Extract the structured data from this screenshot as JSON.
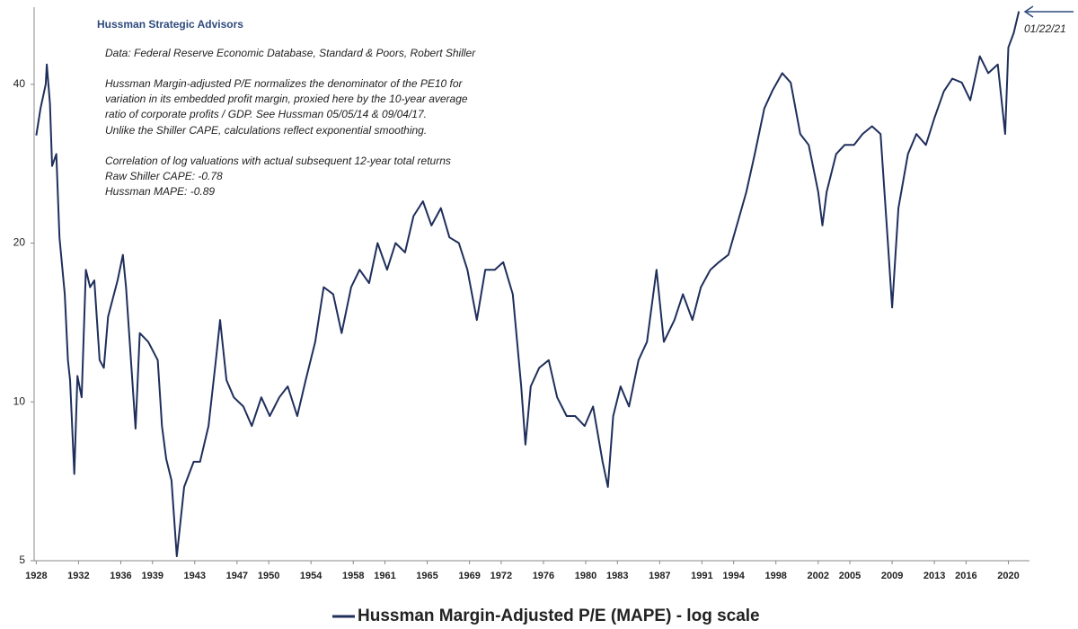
{
  "chart_data": {
    "type": "line",
    "title": "Hussman Strategic Advisors",
    "annotations": [
      "Data: Federal Reserve Economic Database, Standard & Poors, Robert Shiller",
      "Hussman Margin-adjusted P/E normalizes the denominator of the PE10 for",
      "variation in its embedded profit margin, proxied here by the 10-year average",
      "ratio of corporate profits / GDP. See Hussman 05/05/14  & 09/04/17.",
      "Unlike the Shiller CAPE, calculations reflect exponential smoothing.",
      "Correlation of log valuations with actual subsequent 12-year total returns",
      "Raw Shiller CAPE: -0.78",
      "Hussman MAPE: -0.89"
    ],
    "end_label": "01/22/21",
    "log_scale": true,
    "legend": "bottom",
    "xlim": [
      1927.8,
      2022
    ],
    "ylim": [
      5,
      56
    ],
    "yticks": [
      5,
      10,
      20,
      40
    ],
    "xticks": [
      1928,
      1932,
      1936,
      1939,
      1943,
      1947,
      1950,
      1954,
      1958,
      1961,
      1965,
      1969,
      1972,
      1976,
      1980,
      1983,
      1987,
      1991,
      1994,
      1998,
      2002,
      2005,
      2009,
      2013,
      2016,
      2020
    ],
    "x": [
      1928.0,
      1928.4,
      1928.9,
      1929.0,
      1929.3,
      1929.5,
      1929.9,
      1930.2,
      1930.7,
      1931.0,
      1931.2,
      1931.6,
      1931.9,
      1932.3,
      1932.7,
      1933.1,
      1933.5,
      1934.0,
      1934.4,
      1934.8,
      1935.7,
      1936.2,
      1936.5,
      1937.4,
      1937.8,
      1938.6,
      1939.5,
      1939.9,
      1940.3,
      1940.8,
      1941.3,
      1941.6,
      1942.0,
      1942.9,
      1943.5,
      1944.3,
      1945.0,
      1945.4,
      1946.0,
      1946.7,
      1947.6,
      1948.4,
      1949.3,
      1950.1,
      1951.0,
      1951.8,
      1952.7,
      1953.5,
      1954.4,
      1955.2,
      1956.1,
      1956.9,
      1957.8,
      1958.6,
      1959.5,
      1960.3,
      1961.2,
      1962.0,
      1962.9,
      1963.7,
      1964.6,
      1965.4,
      1966.3,
      1967.1,
      1968.0,
      1968.8,
      1969.7,
      1970.5,
      1971.4,
      1972.2,
      1973.1,
      1973.9,
      1974.3,
      1974.8,
      1975.6,
      1976.5,
      1977.3,
      1978.2,
      1979.0,
      1979.9,
      1980.7,
      1981.6,
      1982.1,
      1982.6,
      1983.3,
      1984.1,
      1985.0,
      1985.8,
      1986.7,
      1987.4,
      1988.4,
      1989.2,
      1990.1,
      1990.9,
      1991.8,
      1992.6,
      1993.5,
      1994.3,
      1995.2,
      1996.0,
      1996.9,
      1997.7,
      1998.6,
      1999.4,
      2000.3,
      2001.1,
      2002.0,
      2002.4,
      2002.8,
      2003.7,
      2004.5,
      2005.4,
      2006.2,
      2007.1,
      2007.9,
      2008.6,
      2009.0,
      2009.6,
      2010.5,
      2011.3,
      2012.2,
      2013.0,
      2013.9,
      2014.7,
      2015.6,
      2016.4,
      2017.3,
      2018.1,
      2019.0,
      2019.7,
      2020.0,
      2020.5,
      2021.0
    ],
    "series": [
      {
        "name": "Hussman Margin-Adjusted P/E (MAPE) - log scale",
        "color": "#1f2f5c",
        "values": [
          32,
          36,
          40,
          43.6,
          36.8,
          28,
          29.5,
          20.5,
          16,
          12,
          11,
          7.3,
          11.2,
          10.2,
          17.8,
          16.5,
          17,
          12,
          11.6,
          14.5,
          17,
          19,
          16.5,
          8.9,
          13.5,
          13,
          12,
          9,
          7.8,
          7.1,
          5.1,
          5.8,
          6.9,
          7.7,
          7.7,
          9,
          12,
          14.3,
          11,
          10.2,
          9.8,
          9,
          10.2,
          9.4,
          10.2,
          10.7,
          9.4,
          11,
          13,
          16.5,
          16,
          13.5,
          16.5,
          17.8,
          16.8,
          20,
          17.8,
          20,
          19.2,
          22.5,
          24,
          21.6,
          23.3,
          20.5,
          20,
          17.8,
          14.3,
          17.8,
          17.8,
          18.4,
          16,
          10.7,
          8.3,
          10.7,
          11.6,
          12,
          10.2,
          9.4,
          9.4,
          9,
          9.8,
          7.7,
          6.9,
          9.4,
          10.7,
          9.8,
          12,
          13,
          17.8,
          13,
          14.3,
          16,
          14.3,
          16.5,
          17.8,
          18.4,
          19,
          21.6,
          25,
          29.5,
          36,
          39,
          42,
          40.3,
          32.2,
          30.7,
          25,
          21.6,
          25,
          29.5,
          30.7,
          30.7,
          32.2,
          33.3,
          32.2,
          20,
          15.1,
          23.3,
          29.5,
          32.2,
          30.7,
          34.5,
          38.8,
          41,
          40.3,
          37.3,
          45.2,
          42,
          43.6,
          32.2,
          47,
          50,
          55
        ]
      }
    ]
  }
}
